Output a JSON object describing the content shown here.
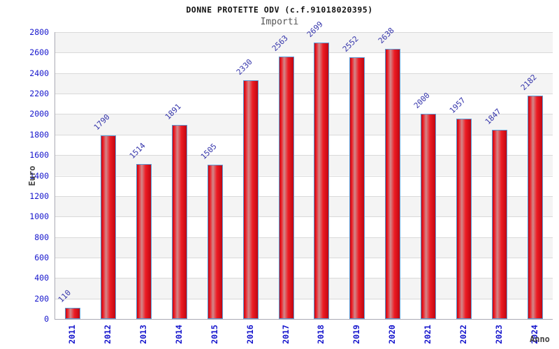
{
  "chart_data": {
    "type": "bar",
    "title": "DONNE PROTETTE ODV (c.f.91018020395)",
    "subtitle": "Importi",
    "xlabel": "Anno",
    "ylabel": "Euro",
    "categories": [
      "2011",
      "2012",
      "2013",
      "2014",
      "2015",
      "2016",
      "2017",
      "2018",
      "2019",
      "2020",
      "2021",
      "2022",
      "2023",
      "2024"
    ],
    "values": [
      110,
      1790,
      1514,
      1891,
      1505,
      2330,
      2563,
      2699,
      2552,
      2638,
      2000,
      1957,
      1847,
      2182
    ],
    "ylim": [
      0,
      2800
    ],
    "ytick_step": 200,
    "grid": true,
    "legend": "none",
    "colors": {
      "bar_red": "#ed1c24",
      "bar_dark_red": "#c00712",
      "bar_highlight": "#d2888a",
      "bar_border": "#5b9bd5",
      "tick_blue": "#1414cc",
      "value_label_blue": "#3333aa",
      "band_gray": "#f4f4f4",
      "grid_line": "#d9d9d9",
      "axis_line": "#aaaab4",
      "axis_title_gray": "#444444",
      "title_black": "#111111",
      "subtitle_gray": "#555555"
    }
  }
}
